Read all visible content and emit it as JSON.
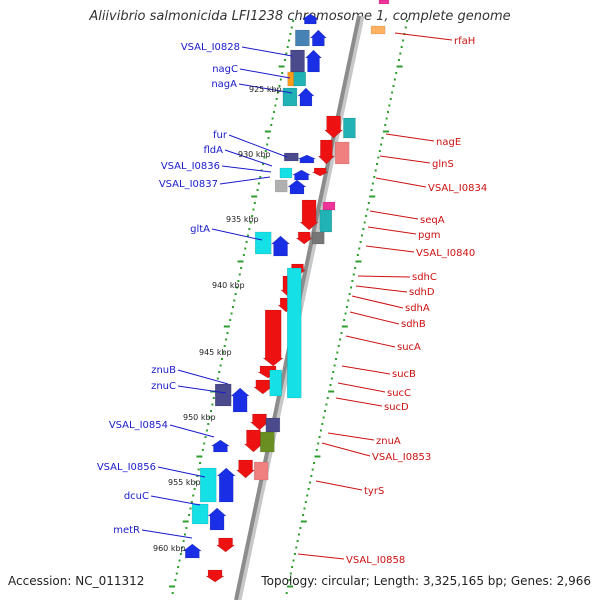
{
  "title": "Aliivibrio salmonicida LFI1238 chromosome 1, complete genome",
  "footer": {
    "accession": "Accession: NC_011312",
    "summary": "Topology: circular; Length: 3,325,165 bp; Genes: 2,966"
  },
  "colors": {
    "backbone": "#8c8c8c",
    "tick": "#2e9e2e",
    "label_left": "#1a1acc",
    "label_right": "#cc1111",
    "gene_red": "#ee1111",
    "gene_blue": "#1a2ee6",
    "gene_navy": "#4a4a8c",
    "gene_cyan": "#14e0e6",
    "gene_teal": "#20b2b4",
    "gene_orange": "#ff9a1a",
    "gene_pink": "#ee3399",
    "gene_salmon": "#f08080",
    "gene_olive": "#6b8e23",
    "gene_gray": "#777777",
    "gene_steel": "#4682b4",
    "gene_light_orange": "#ffb060",
    "gene_light_gray": "#b0b0b0"
  },
  "kbp_marks": [
    "925 kbp",
    "930 kbp",
    "935 kbp",
    "940 kbp",
    "945 kbp",
    "950 kbp",
    "955 kbp",
    "960 kbp"
  ],
  "genes_left": [
    "VSAL_I0828",
    "nagC",
    "nagA",
    "fur",
    "fldA",
    "VSAL_I0836",
    "VSAL_I0837",
    "gltA",
    "znuB",
    "znuC",
    "VSAL_I0854",
    "VSAL_I0856",
    "dcuC",
    "metR"
  ],
  "genes_right": [
    "rfaH",
    "nagE",
    "glnS",
    "VSAL_I0834",
    "seqA",
    "pgm",
    "VSAL_I0840",
    "sdhC",
    "sdhD",
    "sdhA",
    "sdhB",
    "sucA",
    "sucB",
    "sucC",
    "sucD",
    "znuA",
    "VSAL_I0853",
    "tyrS",
    "VSAL_I0858"
  ]
}
